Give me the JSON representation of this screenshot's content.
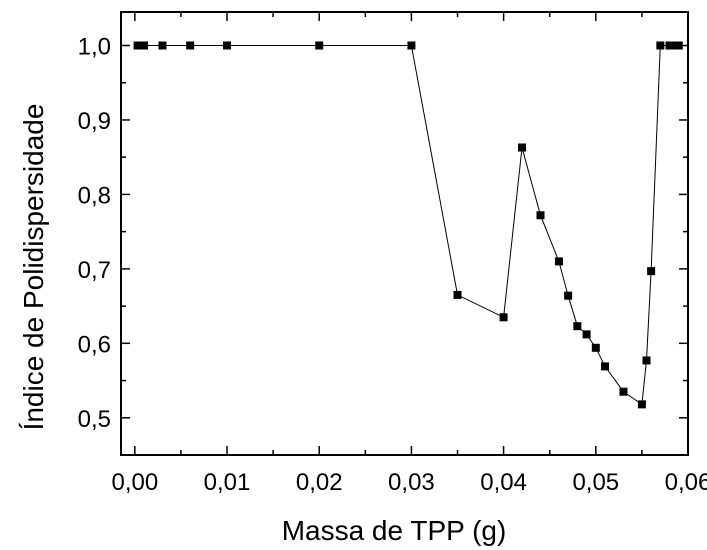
{
  "chart_data": {
    "type": "line",
    "title": "",
    "xlabel": "Massa de TPP (g)",
    "ylabel": "Índice de Polidispersidade",
    "xlim": [
      -0.0015,
      0.06
    ],
    "ylim": [
      0.45,
      1.045
    ],
    "x_ticks": [
      0.0,
      0.01,
      0.02,
      0.03,
      0.04,
      0.05,
      0.06
    ],
    "x_tick_labels": [
      "0,00",
      "0,01",
      "0,02",
      "0,03",
      "0,04",
      "0,05",
      "0,06"
    ],
    "y_ticks": [
      0.5,
      0.6,
      0.7,
      0.8,
      0.9,
      1.0
    ],
    "y_tick_labels": [
      "0,5",
      "0,6",
      "0,7",
      "0,8",
      "0,9",
      "1,0"
    ],
    "grid": false,
    "legend": "none",
    "marker": "square",
    "color": "#000000",
    "series": [
      {
        "x": [
          0.0003,
          0.0005,
          0.0008,
          0.001,
          0.003,
          0.006,
          0.01,
          0.02,
          0.03,
          0.035,
          0.04,
          0.042,
          0.044,
          0.046,
          0.047,
          0.048,
          0.049,
          0.05,
          0.051,
          0.053,
          0.055,
          0.0555,
          0.056,
          0.057,
          0.058,
          0.0585,
          0.059
        ],
        "y": [
          1.0,
          1.0,
          1.0,
          1.0,
          1.0,
          1.0,
          1.0,
          1.0,
          1.0,
          0.665,
          0.635,
          0.863,
          0.772,
          0.71,
          0.664,
          0.623,
          0.612,
          0.594,
          0.569,
          0.535,
          0.518,
          0.577,
          0.697,
          1.0,
          1.0,
          1.0,
          1.0
        ]
      }
    ]
  }
}
